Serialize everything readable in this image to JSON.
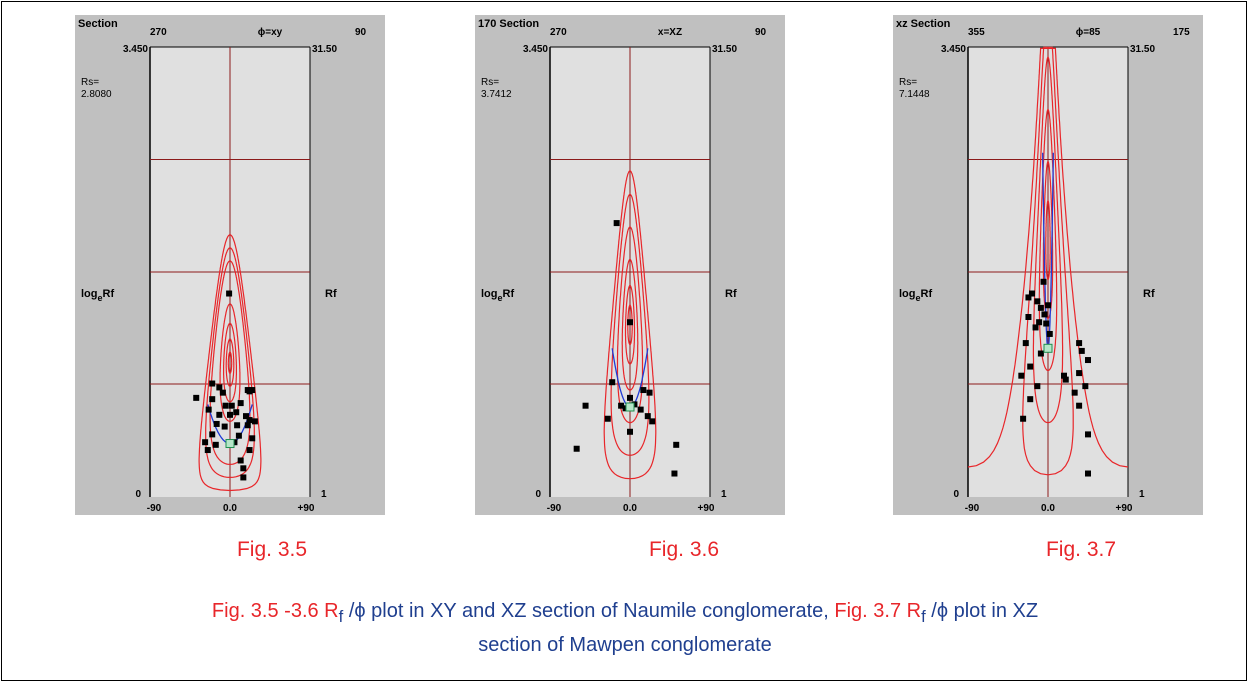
{
  "chart_data": [
    {
      "type": "scatter",
      "section_label": "Section",
      "phi_top_left": "270",
      "phi_top_mid": "ϕ=xy",
      "phi_top_right": "90",
      "y_left_top": "3.450",
      "y_left_bottom": "0",
      "y_right_top": "31.50",
      "y_right_bottom": "1",
      "rs_label": "Rs=",
      "rs_value": "2.8080",
      "ylabel_left": "log",
      "ylabel_left_sub": "e",
      "ylabel_left_tail": "Rf",
      "ylabel_right": "Rf",
      "x_ticks": [
        "-90",
        "0.0",
        "+90"
      ],
      "xlim": [
        -90,
        90
      ],
      "ylim": [
        0,
        3.45
      ],
      "hlines": [
        0.8667,
        1.725,
        2.5875
      ],
      "rs": 1.03,
      "curves": [
        {
          "ri": 0.08,
          "ti": 0
        },
        {
          "ri": 0.18,
          "ti": 0
        },
        {
          "ri": 0.3,
          "ti": 0
        },
        {
          "ri": 0.45,
          "ti": 0
        },
        {
          "ri": 0.78,
          "ti": 0
        },
        {
          "ri": 0.88,
          "ti": 0
        },
        {
          "ri": 0.98,
          "ti": 0
        }
      ],
      "blue_curve": {
        "ln_rs": 0.41,
        "amp": 0.1,
        "phi_max": 25
      },
      "points": [
        {
          "phi": -1,
          "y": 1.56
        },
        {
          "phi": -20,
          "y": 0.87
        },
        {
          "phi": -12,
          "y": 0.84
        },
        {
          "phi": 20,
          "y": 0.82
        },
        {
          "phi": 25,
          "y": 0.82
        },
        {
          "phi": 22,
          "y": 0.81
        },
        {
          "phi": -38,
          "y": 0.76
        },
        {
          "phi": -20,
          "y": 0.75
        },
        {
          "phi": -8,
          "y": 0.8
        },
        {
          "phi": -5,
          "y": 0.7
        },
        {
          "phi": 2,
          "y": 0.7
        },
        {
          "phi": 12,
          "y": 0.72
        },
        {
          "phi": -12,
          "y": 0.63
        },
        {
          "phi": -24,
          "y": 0.67
        },
        {
          "phi": 0,
          "y": 0.63
        },
        {
          "phi": 7,
          "y": 0.65
        },
        {
          "phi": 18,
          "y": 0.62
        },
        {
          "phi": 22,
          "y": 0.59
        },
        {
          "phi": -15,
          "y": 0.56
        },
        {
          "phi": -6,
          "y": 0.54
        },
        {
          "phi": 8,
          "y": 0.55
        },
        {
          "phi": 20,
          "y": 0.55
        },
        {
          "phi": 28,
          "y": 0.58
        },
        {
          "phi": -20,
          "y": 0.48
        },
        {
          "phi": 10,
          "y": 0.47
        },
        {
          "phi": 25,
          "y": 0.45
        },
        {
          "phi": -28,
          "y": 0.42
        },
        {
          "phi": -16,
          "y": 0.4
        },
        {
          "phi": 5,
          "y": 0.42
        },
        {
          "phi": 22,
          "y": 0.36
        },
        {
          "phi": -25,
          "y": 0.36
        },
        {
          "phi": 12,
          "y": 0.28
        },
        {
          "phi": 15,
          "y": 0.22
        },
        {
          "phi": 15,
          "y": 0.15
        }
      ],
      "fig_label": "Fig. 3.5"
    },
    {
      "type": "scatter",
      "section_label": "170 Section",
      "phi_top_left": "270",
      "phi_top_mid": "x=XZ",
      "phi_top_right": "90",
      "y_left_top": "3.450",
      "y_left_bottom": "0",
      "y_right_top": "31.50",
      "y_right_bottom": "1",
      "rs_label": "Rs=",
      "rs_value": "3.7412",
      "ylabel_left": "log",
      "ylabel_left_sub": "e",
      "ylabel_left_tail": "Rf",
      "ylabel_right": "Rf",
      "x_ticks": [
        "-90",
        "0.0",
        "+90"
      ],
      "xlim": [
        -90,
        90
      ],
      "ylim": [
        0,
        3.45
      ],
      "hlines": [
        0.8667,
        1.725,
        2.5875
      ],
      "rs": 1.32,
      "curves": [
        {
          "ri": 0.15,
          "ti": 0
        },
        {
          "ri": 0.3,
          "ti": 0
        },
        {
          "ri": 0.5,
          "ti": 0
        },
        {
          "ri": 0.75,
          "ti": 0
        },
        {
          "ri": 1.0,
          "ti": 0
        },
        {
          "ri": 1.18,
          "ti": 0
        }
      ],
      "blue_curve": {
        "ln_rs": 0.69,
        "amp": 0.15,
        "phi_max": 20
      },
      "points": [
        {
          "phi": -15,
          "y": 2.1
        },
        {
          "phi": 0,
          "y": 1.34
        },
        {
          "phi": -20,
          "y": 0.88
        },
        {
          "phi": 15,
          "y": 0.82
        },
        {
          "phi": 0,
          "y": 0.76
        },
        {
          "phi": 22,
          "y": 0.8
        },
        {
          "phi": -5,
          "y": 0.68
        },
        {
          "phi": 5,
          "y": 0.71
        },
        {
          "phi": -10,
          "y": 0.7
        },
        {
          "phi": 12,
          "y": 0.67
        },
        {
          "phi": -50,
          "y": 0.7
        },
        {
          "phi": -25,
          "y": 0.6
        },
        {
          "phi": 20,
          "y": 0.62
        },
        {
          "phi": 25,
          "y": 0.58
        },
        {
          "phi": 0,
          "y": 0.5
        },
        {
          "phi": 52,
          "y": 0.4
        },
        {
          "phi": -60,
          "y": 0.37
        },
        {
          "phi": 50,
          "y": 0.18
        }
      ],
      "fig_label": "Fig. 3.6"
    },
    {
      "type": "scatter",
      "section_label": "xz Section",
      "phi_top_left": "355",
      "phi_top_mid": "ϕ=85",
      "phi_top_right": "175",
      "y_left_top": "3.450",
      "y_left_bottom": "0",
      "y_right_top": "31.50",
      "y_right_bottom": "1",
      "rs_label": "Rs=",
      "rs_value": "7.1448",
      "ylabel_left": "log",
      "ylabel_left_sub": "e",
      "ylabel_left_tail": "Rf",
      "ylabel_right": "Rf",
      "x_ticks": [
        "-90",
        "0.0",
        "+90"
      ],
      "xlim": [
        -90,
        90
      ],
      "ylim": [
        0,
        3.45
      ],
      "hlines": [
        0.8667,
        1.725,
        2.5875
      ],
      "rs": 1.97,
      "curves": [
        {
          "ri": 0.3,
          "ti": 0
        },
        {
          "ri": 0.6,
          "ti": 0
        },
        {
          "ri": 1.0,
          "ti": 0
        },
        {
          "ri": 1.4,
          "ti": 0
        },
        {
          "ri": 1.8,
          "ti": 0
        },
        {
          "ri": 2.2,
          "ti": 0
        }
      ],
      "blue_curve": {
        "ln_rs": 1.14,
        "amp": 0.5,
        "phi_max": 6
      },
      "points": [
        {
          "phi": -5,
          "y": 1.65
        },
        {
          "phi": -18,
          "y": 1.56
        },
        {
          "phi": -22,
          "y": 1.53
        },
        {
          "phi": -12,
          "y": 1.5
        },
        {
          "phi": 0,
          "y": 1.47
        },
        {
          "phi": -8,
          "y": 1.45
        },
        {
          "phi": -22,
          "y": 1.38
        },
        {
          "phi": -4,
          "y": 1.4
        },
        {
          "phi": -10,
          "y": 1.34
        },
        {
          "phi": -2,
          "y": 1.33
        },
        {
          "phi": 2,
          "y": 1.25
        },
        {
          "phi": -14,
          "y": 1.3
        },
        {
          "phi": -25,
          "y": 1.18
        },
        {
          "phi": -8,
          "y": 1.1
        },
        {
          "phi": 35,
          "y": 1.18
        },
        {
          "phi": 38,
          "y": 1.12
        },
        {
          "phi": -20,
          "y": 1.0
        },
        {
          "phi": 45,
          "y": 1.05
        },
        {
          "phi": 35,
          "y": 0.95
        },
        {
          "phi": -30,
          "y": 0.93
        },
        {
          "phi": 18,
          "y": 0.93
        },
        {
          "phi": -12,
          "y": 0.85
        },
        {
          "phi": 20,
          "y": 0.9
        },
        {
          "phi": 42,
          "y": 0.85
        },
        {
          "phi": 30,
          "y": 0.8
        },
        {
          "phi": 35,
          "y": 0.7
        },
        {
          "phi": -28,
          "y": 0.6
        },
        {
          "phi": -20,
          "y": 0.75
        },
        {
          "phi": 45,
          "y": 0.48
        },
        {
          "phi": 45,
          "y": 0.18
        }
      ],
      "fig_label": "Fig. 3.7"
    }
  ],
  "caption": {
    "part1": "Fig.  3.5 -3.6 R",
    "sub1": "f",
    "part2": " /ϕ",
    "part3": " plot in XY  and  XZ section of Naumile conglomerate, ",
    "part4": "Fig. 3.7   R",
    "sub2": "f",
    "part5": " /ϕ",
    "part6": " plot in XZ",
    "line2": "section of Mawpen conglomerate"
  },
  "colors": {
    "grey_frame": "#c0c0c0",
    "plot_bg": "#e0e0e0",
    "dark_red": "#8b1a1a",
    "curve_red": "#e8262a",
    "blue_curve": "#1e3bd6",
    "point": "#000000",
    "caption_red": "#e8262a",
    "caption_blue": "#1f3f8f"
  }
}
